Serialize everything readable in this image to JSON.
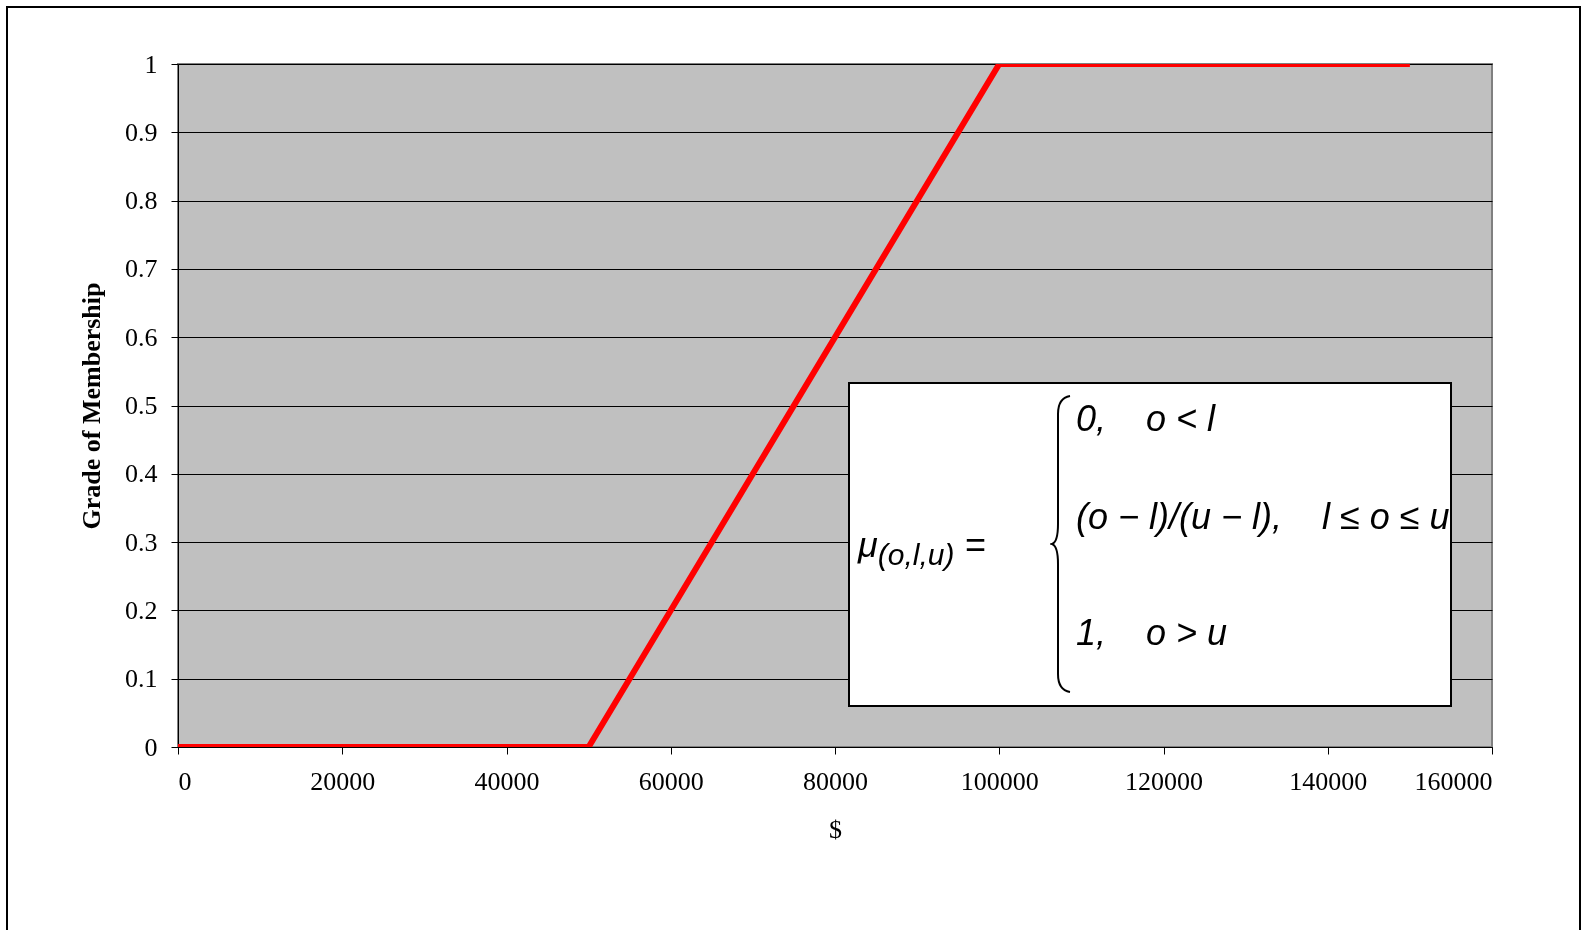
{
  "chart_data": {
    "type": "line",
    "xlabel": "$",
    "ylabel": "Grade of Membership",
    "x": [
      0,
      50000,
      100000,
      150000
    ],
    "series": [
      {
        "color": "#ff0000",
        "values": [
          0,
          0,
          1,
          1
        ]
      }
    ],
    "xlim": [
      0,
      160000
    ],
    "xticks": [
      0,
      20000,
      40000,
      60000,
      80000,
      100000,
      120000,
      140000,
      160000
    ],
    "ylim": [
      0,
      1
    ],
    "yticks": [
      0,
      0.1,
      0.2,
      0.3,
      0.4,
      0.5,
      0.6,
      0.7,
      0.8,
      0.9,
      1
    ],
    "grid": "y",
    "legend": false,
    "marker": "none",
    "line_style": "solid",
    "annotations": [
      "μ$_{(o,l,u)}$ =",
      "0,    o < l",
      "(o − l)/(u − l),    l ≤ o ≤ u",
      "1,    o > u"
    ]
  }
}
